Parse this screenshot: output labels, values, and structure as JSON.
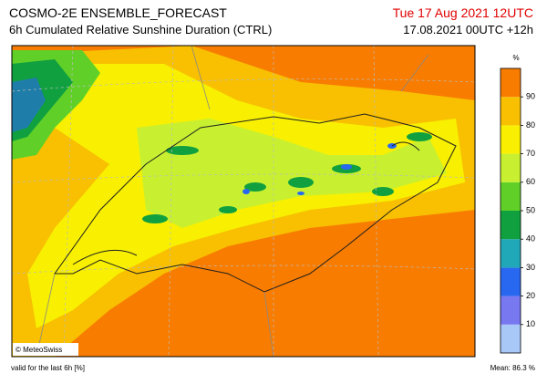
{
  "header": {
    "title": "COSMO-2E ENSEMBLE_FORECAST",
    "subtitle": "6h Cumulated Relative Sunshine Duration (CTRL)",
    "valid_time": "Tue 17 Aug 2021 12UTC",
    "run": "17.08.2021 00UTC +12h"
  },
  "map": {
    "credit": "© MeteoSwiss"
  },
  "colorbar": {
    "unit": "%",
    "lim": [
      0,
      100
    ],
    "ticks": [
      10,
      20,
      30,
      40,
      50,
      60,
      70,
      80,
      90
    ],
    "colors": [
      "#a8c8f8",
      "#7878f0",
      "#2868f0",
      "#20a8b8",
      "#10a040",
      "#60d028",
      "#c8f030",
      "#f8f000",
      "#f8c000",
      "#f87c00"
    ]
  },
  "footer": {
    "note": "valid for the last 6h [%]",
    "mean": "Mean:  86.3 %"
  }
}
